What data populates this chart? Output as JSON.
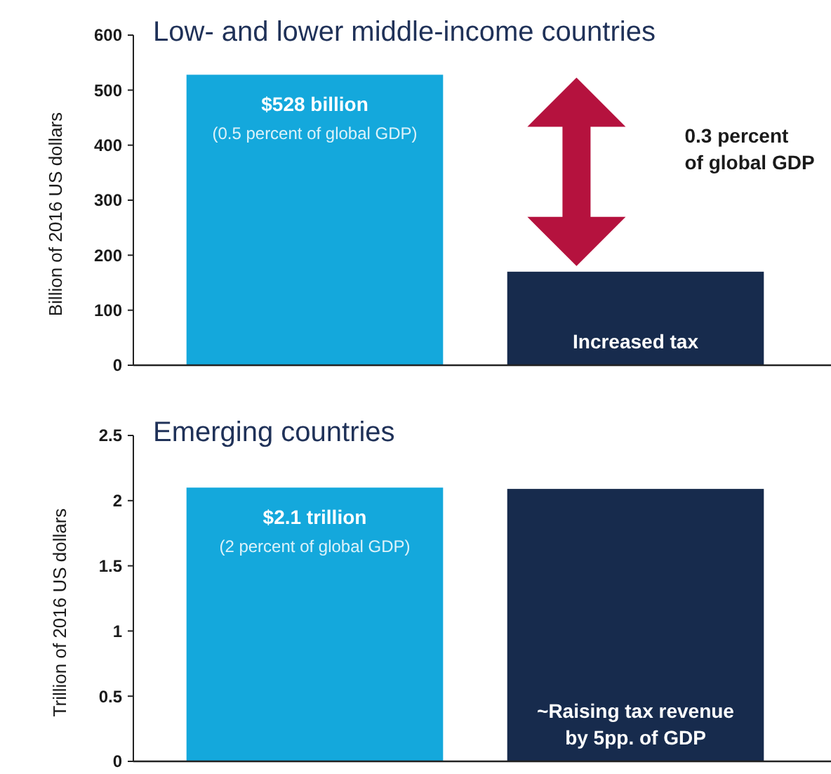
{
  "chart_data": [
    {
      "type": "bar",
      "title": "Low- and lower middle-income countries",
      "ylabel": "Billion of 2016 US dollars",
      "categories": [
        null,
        null
      ],
      "series": [
        {
          "colors": [
            "#14a8dc",
            "#172b4d"
          ],
          "values": [
            528,
            170
          ]
        }
      ],
      "ylim": [
        0,
        600
      ],
      "yticks": [
        0,
        100,
        200,
        300,
        400,
        500,
        600
      ],
      "annotations": [
        "$528 billion",
        "(0.5 percent of global GDP)",
        "0.3 percent\nof global GDP",
        "Increased tax"
      ]
    },
    {
      "type": "bar",
      "title": "Emerging countries",
      "ylabel": "Trillion of 2016 US dollars",
      "categories": [
        null,
        null
      ],
      "series": [
        {
          "colors": [
            "#14a8dc",
            "#172b4d"
          ],
          "values": [
            2.1,
            2.09
          ]
        }
      ],
      "ylim": [
        0,
        2.5
      ],
      "yticks": [
        0,
        0.5,
        1,
        1.5,
        2,
        2.5
      ],
      "annotations": [
        "$2.1 trillion",
        "(2 percent of global GDP)",
        "~Raising tax revenue\nby 5pp. of GDP"
      ]
    }
  ]
}
